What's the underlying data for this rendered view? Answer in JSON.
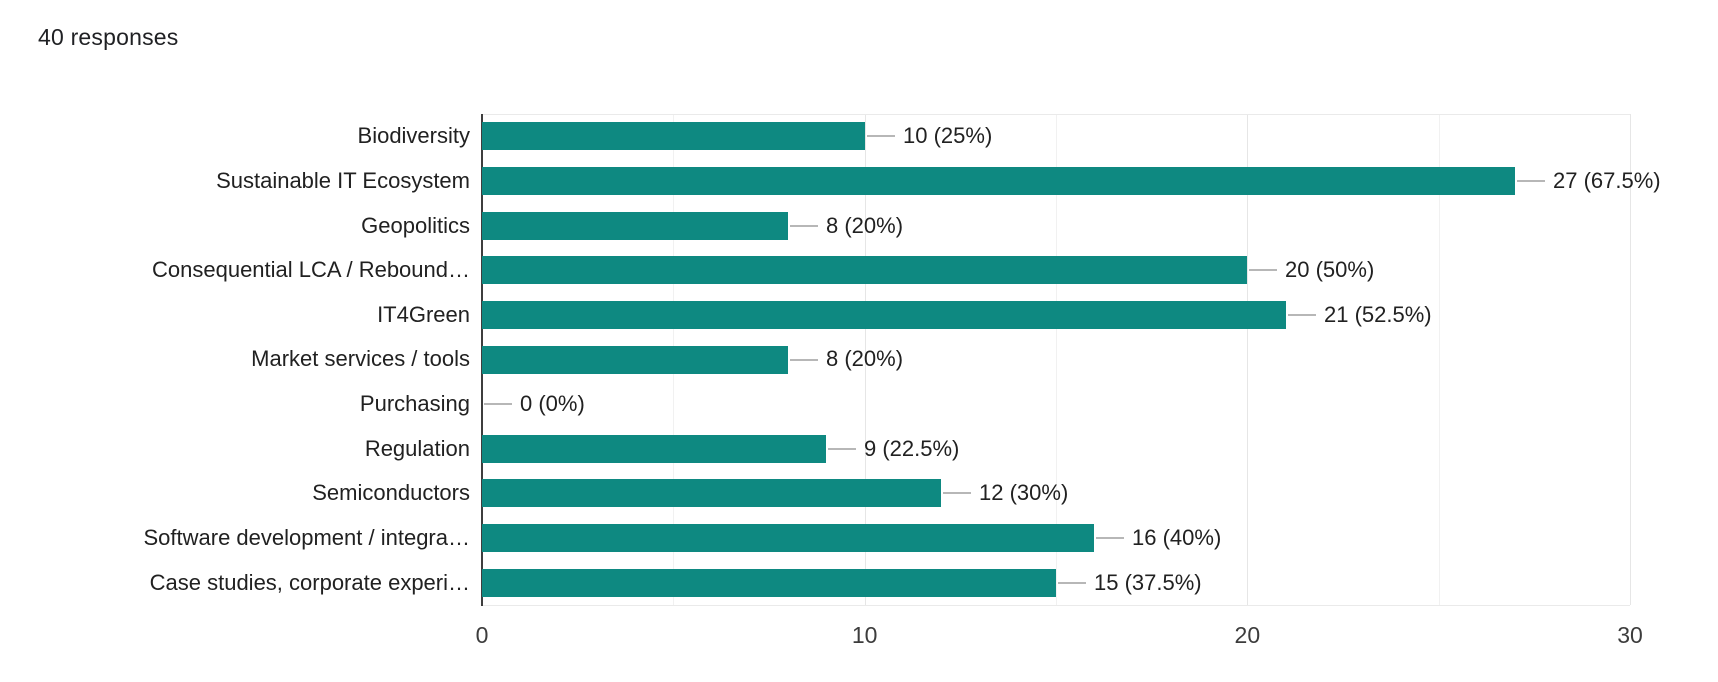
{
  "header": {
    "responses_label": "40 responses"
  },
  "chart_data": {
    "type": "bar",
    "orientation": "horizontal",
    "categories": [
      "Biodiversity",
      "Sustainable IT Ecosystem",
      "Geopolitics",
      "Consequential LCA / Rebound…",
      "IT4Green",
      "Market services / tools",
      "Purchasing",
      "Regulation",
      "Semiconductors",
      "Software development / integra…",
      "Case studies, corporate experi…"
    ],
    "values": [
      10,
      27,
      8,
      20,
      21,
      8,
      0,
      9,
      12,
      16,
      15
    ],
    "value_labels": [
      "10 (25%)",
      "27 (67.5%)",
      "8 (20%)",
      "20 (50%)",
      "21 (52.5%)",
      "8 (20%)",
      "0 (0%)",
      "9 (22.5%)",
      "12 (30%)",
      "16 (40%)",
      "15 (37.5%)"
    ],
    "total_responses": 40,
    "x_ticks": [
      0,
      10,
      20,
      30
    ],
    "xlim": [
      0,
      30
    ],
    "gridlines_minor": [
      5,
      15,
      25
    ],
    "gridlines_major": [
      10,
      20,
      30
    ],
    "legend": "none",
    "grid": "on",
    "colors": {
      "bar": "#0e8981",
      "axis": "#3e3e3e",
      "grid_major": "#e6e6e6",
      "grid_minor": "#f1f1f1",
      "plot_border": "#eaeaea",
      "leader": "#b7b7b7",
      "label_text": "#212121",
      "tick_text": "#3c3c3c",
      "title_text": "#202124",
      "background": "#ffffff"
    }
  }
}
